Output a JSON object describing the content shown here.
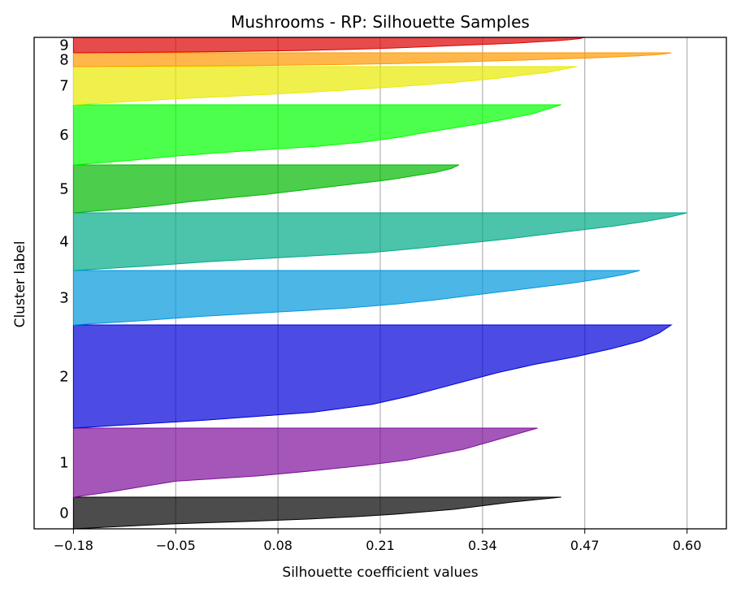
{
  "chart_data": {
    "type": "area",
    "title": "Mushrooms - RP: Silhouette Samples",
    "xlabel": "Silhouette coefficient values",
    "ylabel": "Cluster label",
    "xlim": [
      -0.23,
      0.65
    ],
    "xticks": [
      "−0.18",
      "−0.05",
      "0.08",
      "0.21",
      "0.34",
      "0.47",
      "0.60"
    ],
    "xtick_values": [
      -0.18,
      -0.05,
      0.08,
      0.21,
      0.34,
      0.47,
      0.6
    ],
    "grid": "vertical",
    "clusters": [
      {
        "label": "0",
        "color": "#000000",
        "max": 0.44
      },
      {
        "label": "1",
        "color": "#7e0f9a",
        "max": 0.41
      },
      {
        "label": "2",
        "color": "#0000d8",
        "max": 0.58
      },
      {
        "label": "3",
        "color": "#0097dd",
        "max": 0.54
      },
      {
        "label": "4",
        "color": "#00aa88",
        "max": 0.6
      },
      {
        "label": "5",
        "color": "#00b800",
        "max": 0.31
      },
      {
        "label": "6",
        "color": "#00ff00",
        "max": 0.44
      },
      {
        "label": "7",
        "color": "#eaea00",
        "max": 0.46
      },
      {
        "label": "8",
        "color": "#ff9900",
        "max": 0.58
      },
      {
        "label": "9",
        "color": "#dd0000",
        "max": 0.47
      }
    ]
  }
}
